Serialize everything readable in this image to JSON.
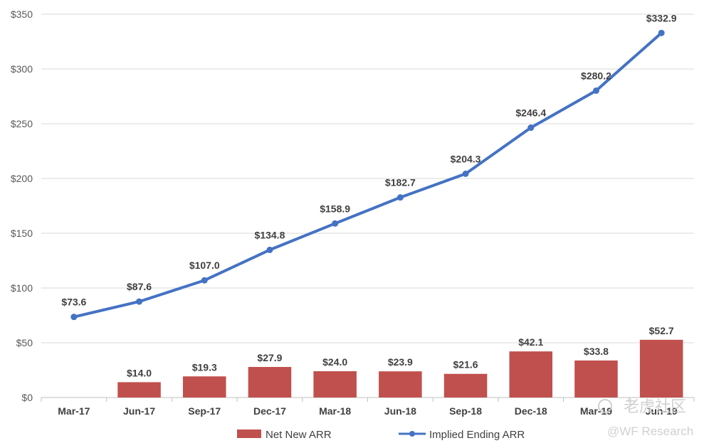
{
  "chart_data": {
    "type": "bar",
    "categories": [
      "Mar-17",
      "Jun-17",
      "Sep-17",
      "Dec-17",
      "Mar-18",
      "Jun-18",
      "Sep-18",
      "Dec-18",
      "Mar-19",
      "Jun-19"
    ],
    "series": [
      {
        "name": "Net New ARR",
        "type": "bar",
        "color": "#c0504d",
        "values": [
          null,
          14.0,
          19.3,
          27.9,
          24.0,
          23.9,
          21.6,
          42.1,
          33.8,
          52.7
        ],
        "labels": [
          "",
          "$14.0",
          "$19.3",
          "$27.9",
          "$24.0",
          "$23.9",
          "$21.6",
          "$42.1",
          "$33.8",
          "$52.7"
        ]
      },
      {
        "name": "Implied Ending ARR",
        "type": "line",
        "color": "#4472c4",
        "values": [
          73.6,
          87.6,
          107.0,
          134.8,
          158.9,
          182.7,
          204.3,
          246.4,
          280.2,
          332.9
        ],
        "labels": [
          "$73.6",
          "$87.6",
          "$107.0",
          "$134.8",
          "$158.9",
          "$182.7",
          "$204.3",
          "$246.4",
          "$280.2",
          "$332.9"
        ]
      }
    ],
    "ylim": [
      0,
      350
    ],
    "yticks": [
      0,
      50,
      100,
      150,
      200,
      250,
      300,
      350
    ],
    "ytick_labels": [
      "$0",
      "$50",
      "$100",
      "$150",
      "$200",
      "$250",
      "$300",
      "$350"
    ],
    "grid": true,
    "legend_position": "bottom"
  },
  "watermark": {
    "line1": "老虎社区",
    "line2": "@WF Research"
  }
}
